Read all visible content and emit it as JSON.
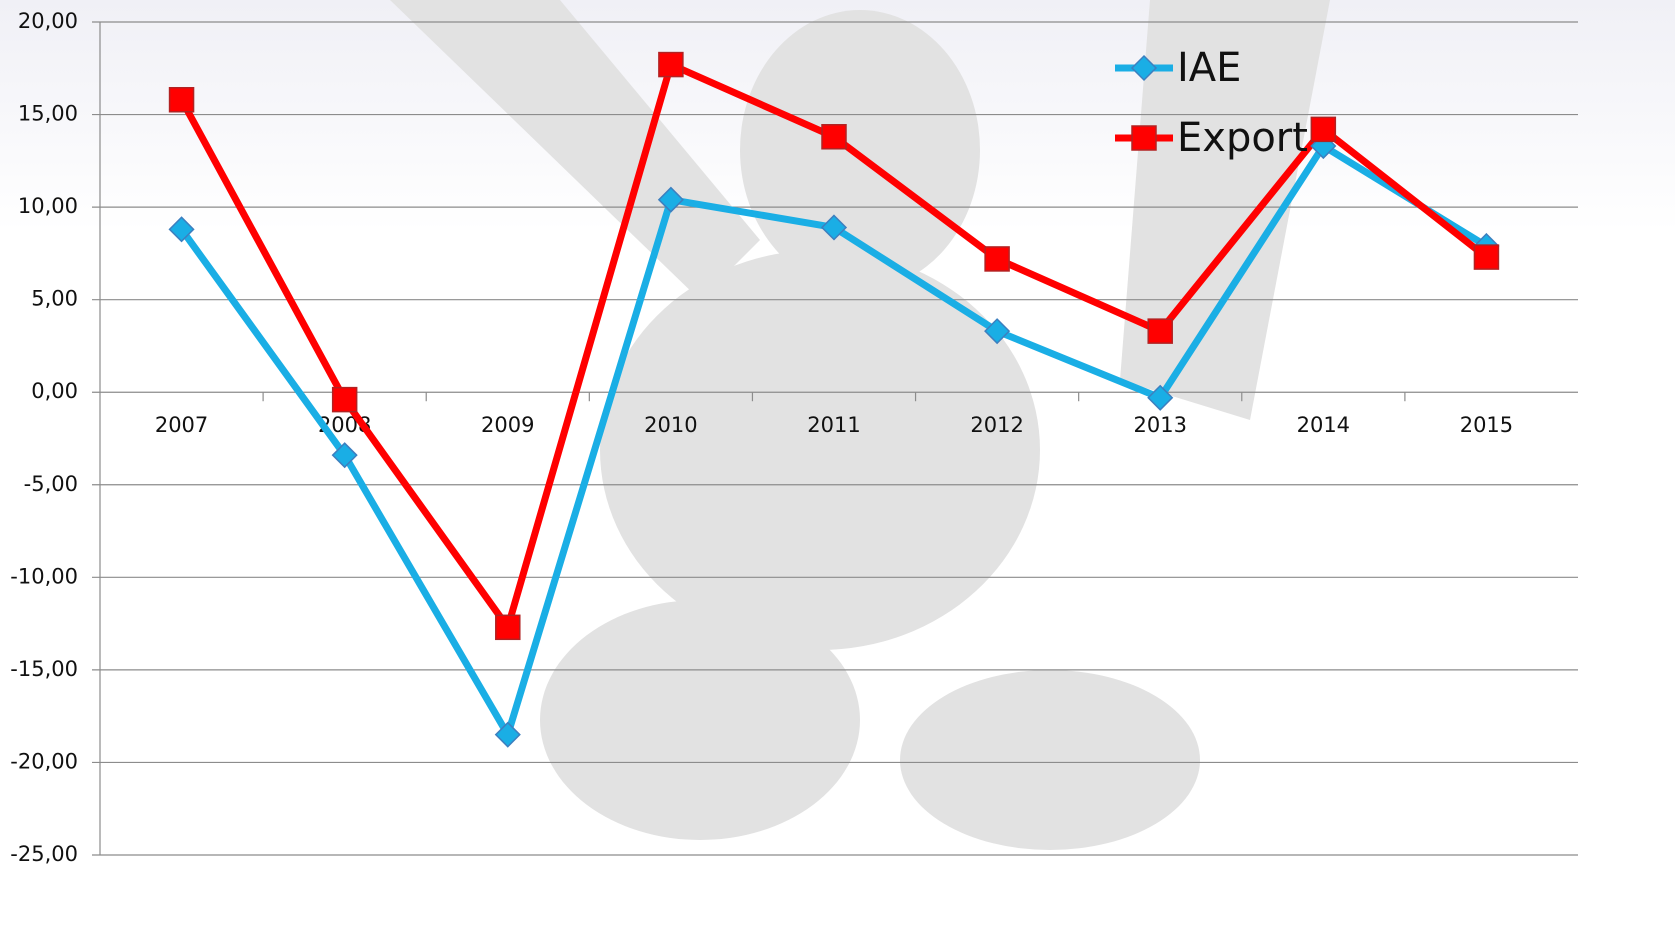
{
  "chart_data": {
    "type": "line",
    "categories": [
      "2007",
      "2008",
      "2009",
      "2010",
      "2011",
      "2012",
      "2013",
      "2014",
      "2015"
    ],
    "series": [
      {
        "name": "IAE",
        "color": "#1aaee5",
        "marker": "diamond",
        "values": [
          8.8,
          -3.4,
          -18.5,
          10.4,
          8.9,
          3.3,
          -0.3,
          13.3,
          7.9
        ]
      },
      {
        "name": "Export",
        "color": "#ff0000",
        "marker": "square",
        "values": [
          15.8,
          -0.4,
          -12.7,
          17.7,
          13.8,
          7.2,
          3.3,
          14.2,
          7.3
        ]
      }
    ],
    "ylim": [
      -25,
      20
    ],
    "yticks": [
      {
        "value": -25,
        "label": "-25,00"
      },
      {
        "value": -20,
        "label": "-20,00"
      },
      {
        "value": -15,
        "label": "-15,00"
      },
      {
        "value": -10,
        "label": "-10,00"
      },
      {
        "value": -5,
        "label": "-5,00"
      },
      {
        "value": 0,
        "label": "0,00"
      },
      {
        "value": 5,
        "label": "5,00"
      },
      {
        "value": 10,
        "label": "10,00"
      },
      {
        "value": 15,
        "label": "15,00"
      },
      {
        "value": 20,
        "label": "20,00"
      }
    ],
    "grid": true,
    "legend": "top-right"
  }
}
